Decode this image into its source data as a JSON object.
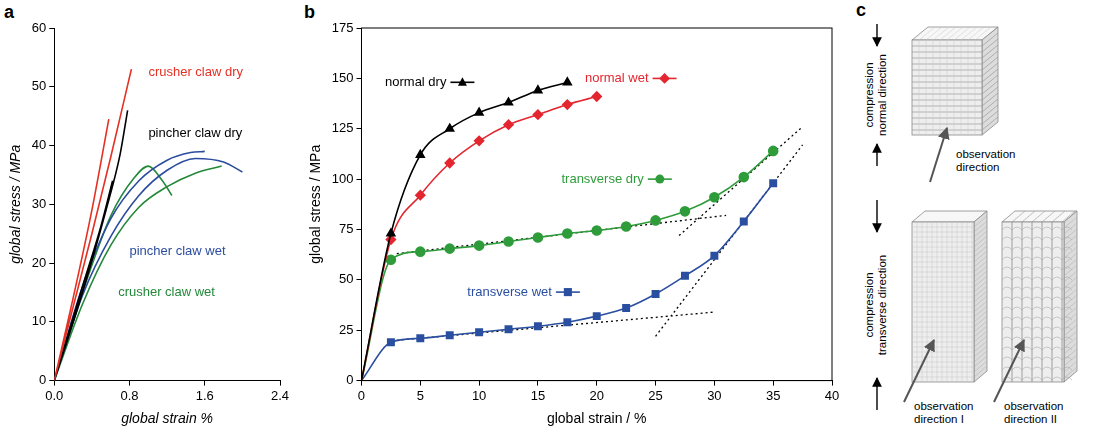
{
  "chart_data": [
    {
      "panel": "a",
      "type": "line",
      "x_label": "global strain %",
      "y_label": "global stress / MPa",
      "xlim": [
        0,
        2.4
      ],
      "xticks": [
        {
          "value": 0,
          "label": "0.0"
        },
        0.8,
        1.6,
        2.4
      ],
      "ylim": [
        0,
        60
      ],
      "yticks": [
        0,
        10,
        20,
        30,
        40,
        50,
        60
      ],
      "grid": false,
      "series": [
        {
          "name": "crusher claw dry",
          "color": "#e53024",
          "marker": "none",
          "line_style": "solid",
          "x": [
            0,
            0.2,
            0.4,
            0.58,
            null,
            0,
            0.2,
            0.4,
            0.6,
            0.82
          ],
          "values": [
            0,
            14,
            29,
            44.5,
            null,
            0,
            12.5,
            25,
            38,
            53
          ]
        },
        {
          "name": "pincher claw dry",
          "color": "#000000",
          "marker": "none",
          "line_style": "solid",
          "x": [
            0,
            0.3,
            0.5,
            0.62,
            null,
            0,
            0.3,
            0.55,
            0.7,
            0.78
          ],
          "values": [
            0,
            16,
            26.5,
            34,
            null,
            0,
            15,
            29,
            38.5,
            46
          ]
        },
        {
          "name": "pincher claw wet",
          "color": "#2b4c9f",
          "marker": "none",
          "line_style": "solid",
          "x": [
            0,
            0.3,
            0.6,
            0.9,
            1.2,
            1.45,
            1.6,
            null,
            0,
            0.3,
            0.6,
            0.9,
            1.2,
            1.5,
            1.8,
            2.0
          ],
          "values": [
            0,
            16,
            27.5,
            34,
            37.5,
            38.8,
            39,
            null,
            0,
            14.5,
            24.5,
            31.5,
            35.8,
            37.8,
            37.2,
            35.5
          ]
        },
        {
          "name": "crusher claw wet",
          "color": "#23883a",
          "marker": "none",
          "line_style": "solid",
          "x": [
            0,
            0.3,
            0.6,
            0.85,
            1.0,
            1.15,
            1.25,
            null,
            0,
            0.3,
            0.6,
            0.9,
            1.2,
            1.5,
            1.78
          ],
          "values": [
            0,
            15,
            28,
            34.5,
            36.5,
            34,
            31.5,
            null,
            0,
            13,
            23,
            29.5,
            33,
            35.3,
            36.5
          ]
        }
      ]
    },
    {
      "panel": "b",
      "type": "line",
      "x_label": "global strain / %",
      "y_label": "global stress / MPa",
      "xlim": [
        0,
        40
      ],
      "xticks": [
        0,
        5,
        10,
        15,
        20,
        25,
        30,
        35,
        40
      ],
      "ylim": [
        0,
        175
      ],
      "yticks": [
        0,
        25,
        50,
        75,
        100,
        125,
        150,
        175
      ],
      "grid": false,
      "series": [
        {
          "name": "normal dry",
          "color": "#000000",
          "marker": "triangle",
          "line_style": "solid",
          "x": [
            0,
            2.5,
            5,
            7.5,
            10,
            12.5,
            15,
            17.5
          ],
          "values": [
            0,
            73,
            112,
            125,
            133,
            138,
            144,
            148
          ]
        },
        {
          "name": "normal wet",
          "color": "#e3262f",
          "marker": "diamond",
          "line_style": "solid",
          "x": [
            0,
            2.5,
            5,
            7.5,
            10,
            12.5,
            15,
            17.5,
            20
          ],
          "values": [
            0,
            70,
            92,
            108,
            119,
            127,
            132,
            137,
            141
          ]
        },
        {
          "name": "transverse dry",
          "color": "#2e9c3a",
          "marker": "circle",
          "line_style": "solid",
          "x": [
            0,
            2.5,
            5,
            7.5,
            10,
            12.5,
            15,
            17.5,
            20,
            22.5,
            25,
            27.5,
            30,
            32.5,
            35
          ],
          "values": [
            0,
            60,
            64,
            65.5,
            67,
            69,
            71,
            73,
            74.5,
            76.5,
            79.5,
            84,
            91,
            101,
            114
          ]
        },
        {
          "name": "transverse wet",
          "color": "#2a4fa0",
          "marker": "square",
          "line_style": "solid",
          "x": [
            0,
            2.5,
            5,
            7.5,
            10,
            12.5,
            15,
            17.5,
            20,
            22.5,
            25,
            27.5,
            30,
            32.5,
            35
          ],
          "values": [
            0,
            19,
            21,
            22.5,
            24,
            25.5,
            27,
            29,
            32,
            36,
            43,
            52,
            62,
            79,
            98
          ]
        },
        {
          "color": "#000000",
          "marker": "none",
          "line_style": "dotted",
          "x": [
            3,
            31,
            null,
            27,
            37.5,
            null,
            3,
            30,
            null,
            25,
            37.5
          ],
          "values": [
            63,
            82,
            null,
            72,
            126,
            null,
            20,
            34,
            null,
            22,
            117
          ]
        }
      ]
    }
  ],
  "diagram": {
    "panel": "c",
    "groups": [
      {
        "compression": "compression normal direction",
        "views": [
          "observation direction"
        ]
      },
      {
        "compression": "compression transverse direction",
        "views": [
          "observation direction I",
          "observation direction II"
        ]
      }
    ]
  }
}
